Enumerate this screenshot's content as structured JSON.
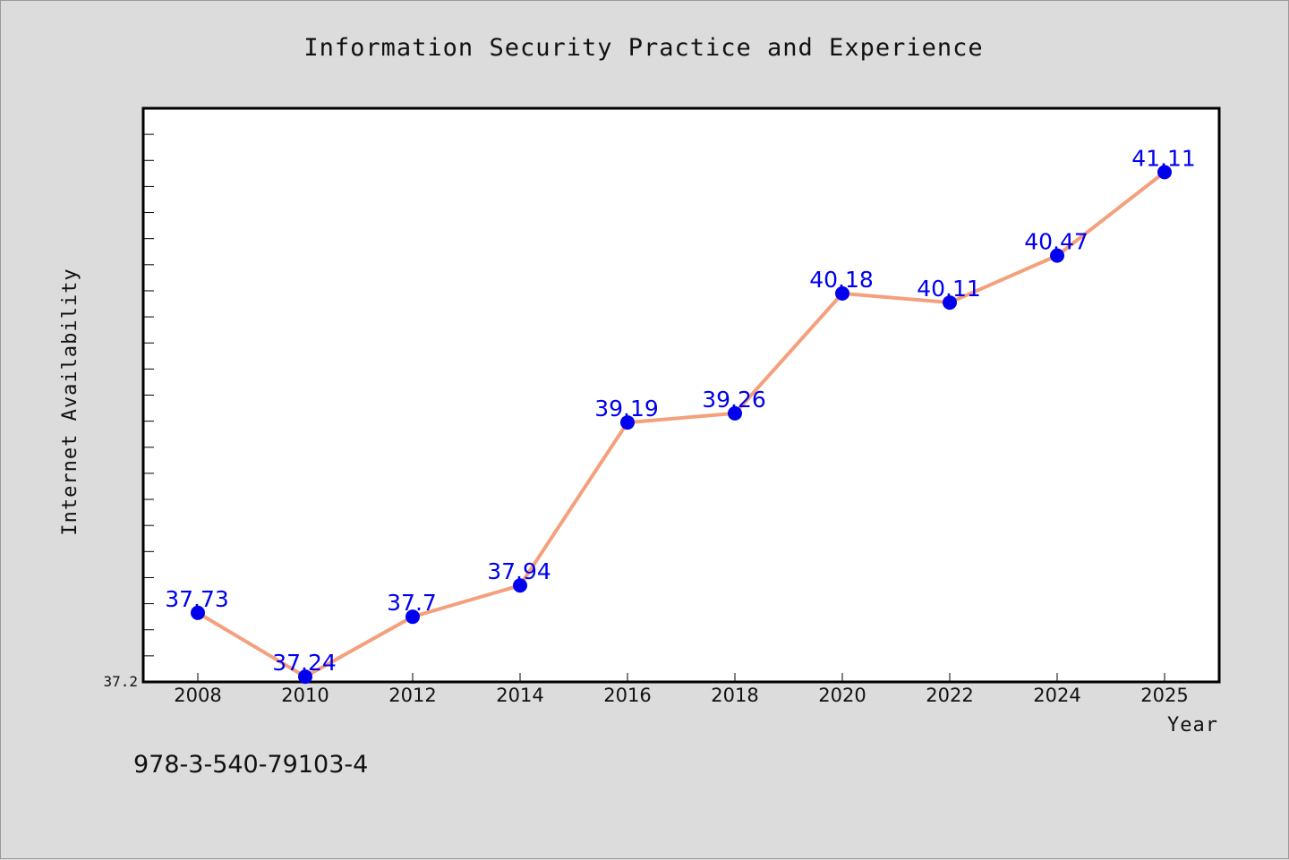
{
  "chart_data": {
    "type": "line",
    "title": "Information Security Practice and Experience",
    "xlabel": "Year",
    "ylabel": "Internet Availability",
    "x": [
      "2008",
      "2010",
      "2012",
      "2014",
      "2016",
      "2018",
      "2020",
      "2022",
      "2024",
      "2025"
    ],
    "series": [
      {
        "values": [
          37.73,
          37.24,
          37.7,
          37.94,
          39.19,
          39.26,
          40.18,
          40.11,
          40.47,
          41.11
        ],
        "labels": [
          "37.73",
          "37.24",
          "37.7",
          "37.94",
          "39.19",
          "39.26",
          "40.18",
          "40.11",
          "40.47",
          "41.11"
        ]
      }
    ],
    "ylim": [
      37.2,
      41.6
    ],
    "y_tick_label": "37.2",
    "grid": false,
    "colors": {
      "line": "#f4a07c",
      "marker": "#0000ee",
      "label": "#0000ee"
    }
  },
  "footer": {
    "isbn": "978-3-540-79103-4"
  }
}
